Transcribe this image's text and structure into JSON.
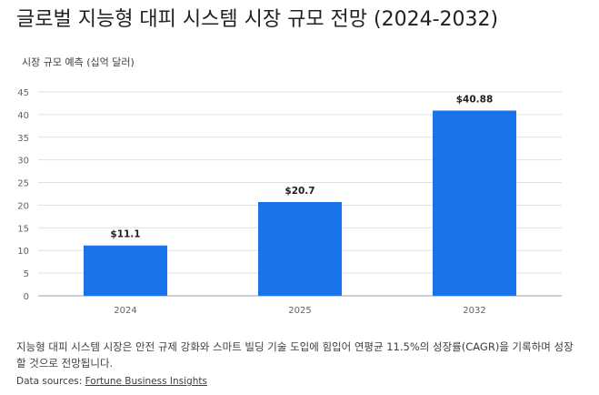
{
  "title": "글로벌 지능형 대피 시스템 시장 규모 전망 (2024-2032)",
  "colors": {
    "bar": "#1a73e8",
    "grid": "#e0e0e0",
    "axis": "#9aa0a6"
  },
  "chart_data": {
    "type": "bar",
    "title": "글로벌 지능형 대피 시스템 시장 규모 전망 (2024-2032)",
    "ylabel": "시장 규모 예측 (십억 달러)",
    "xlabel": "",
    "categories": [
      "2024",
      "2025",
      "2032"
    ],
    "values": [
      11.1,
      20.7,
      40.88
    ],
    "data_labels": [
      "$11.1",
      "$20.7",
      "$40.88"
    ],
    "ylim": [
      0,
      45
    ],
    "yticks": [
      "0",
      "5",
      "10",
      "15",
      "20",
      "25",
      "30",
      "35",
      "40",
      "45"
    ],
    "grid": true,
    "legend": "none"
  },
  "caption": "지능형 대피 시스템 시장은 안전 규제 강화와 스마트 빌딩 기술 도입에 힘입어 연평균 11.5%의 성장률(CAGR)을 기록하며 성장할 것으로 전망됩니다.",
  "sources": {
    "prefix": "Data sources:",
    "link": "Fortune Business Insights"
  }
}
